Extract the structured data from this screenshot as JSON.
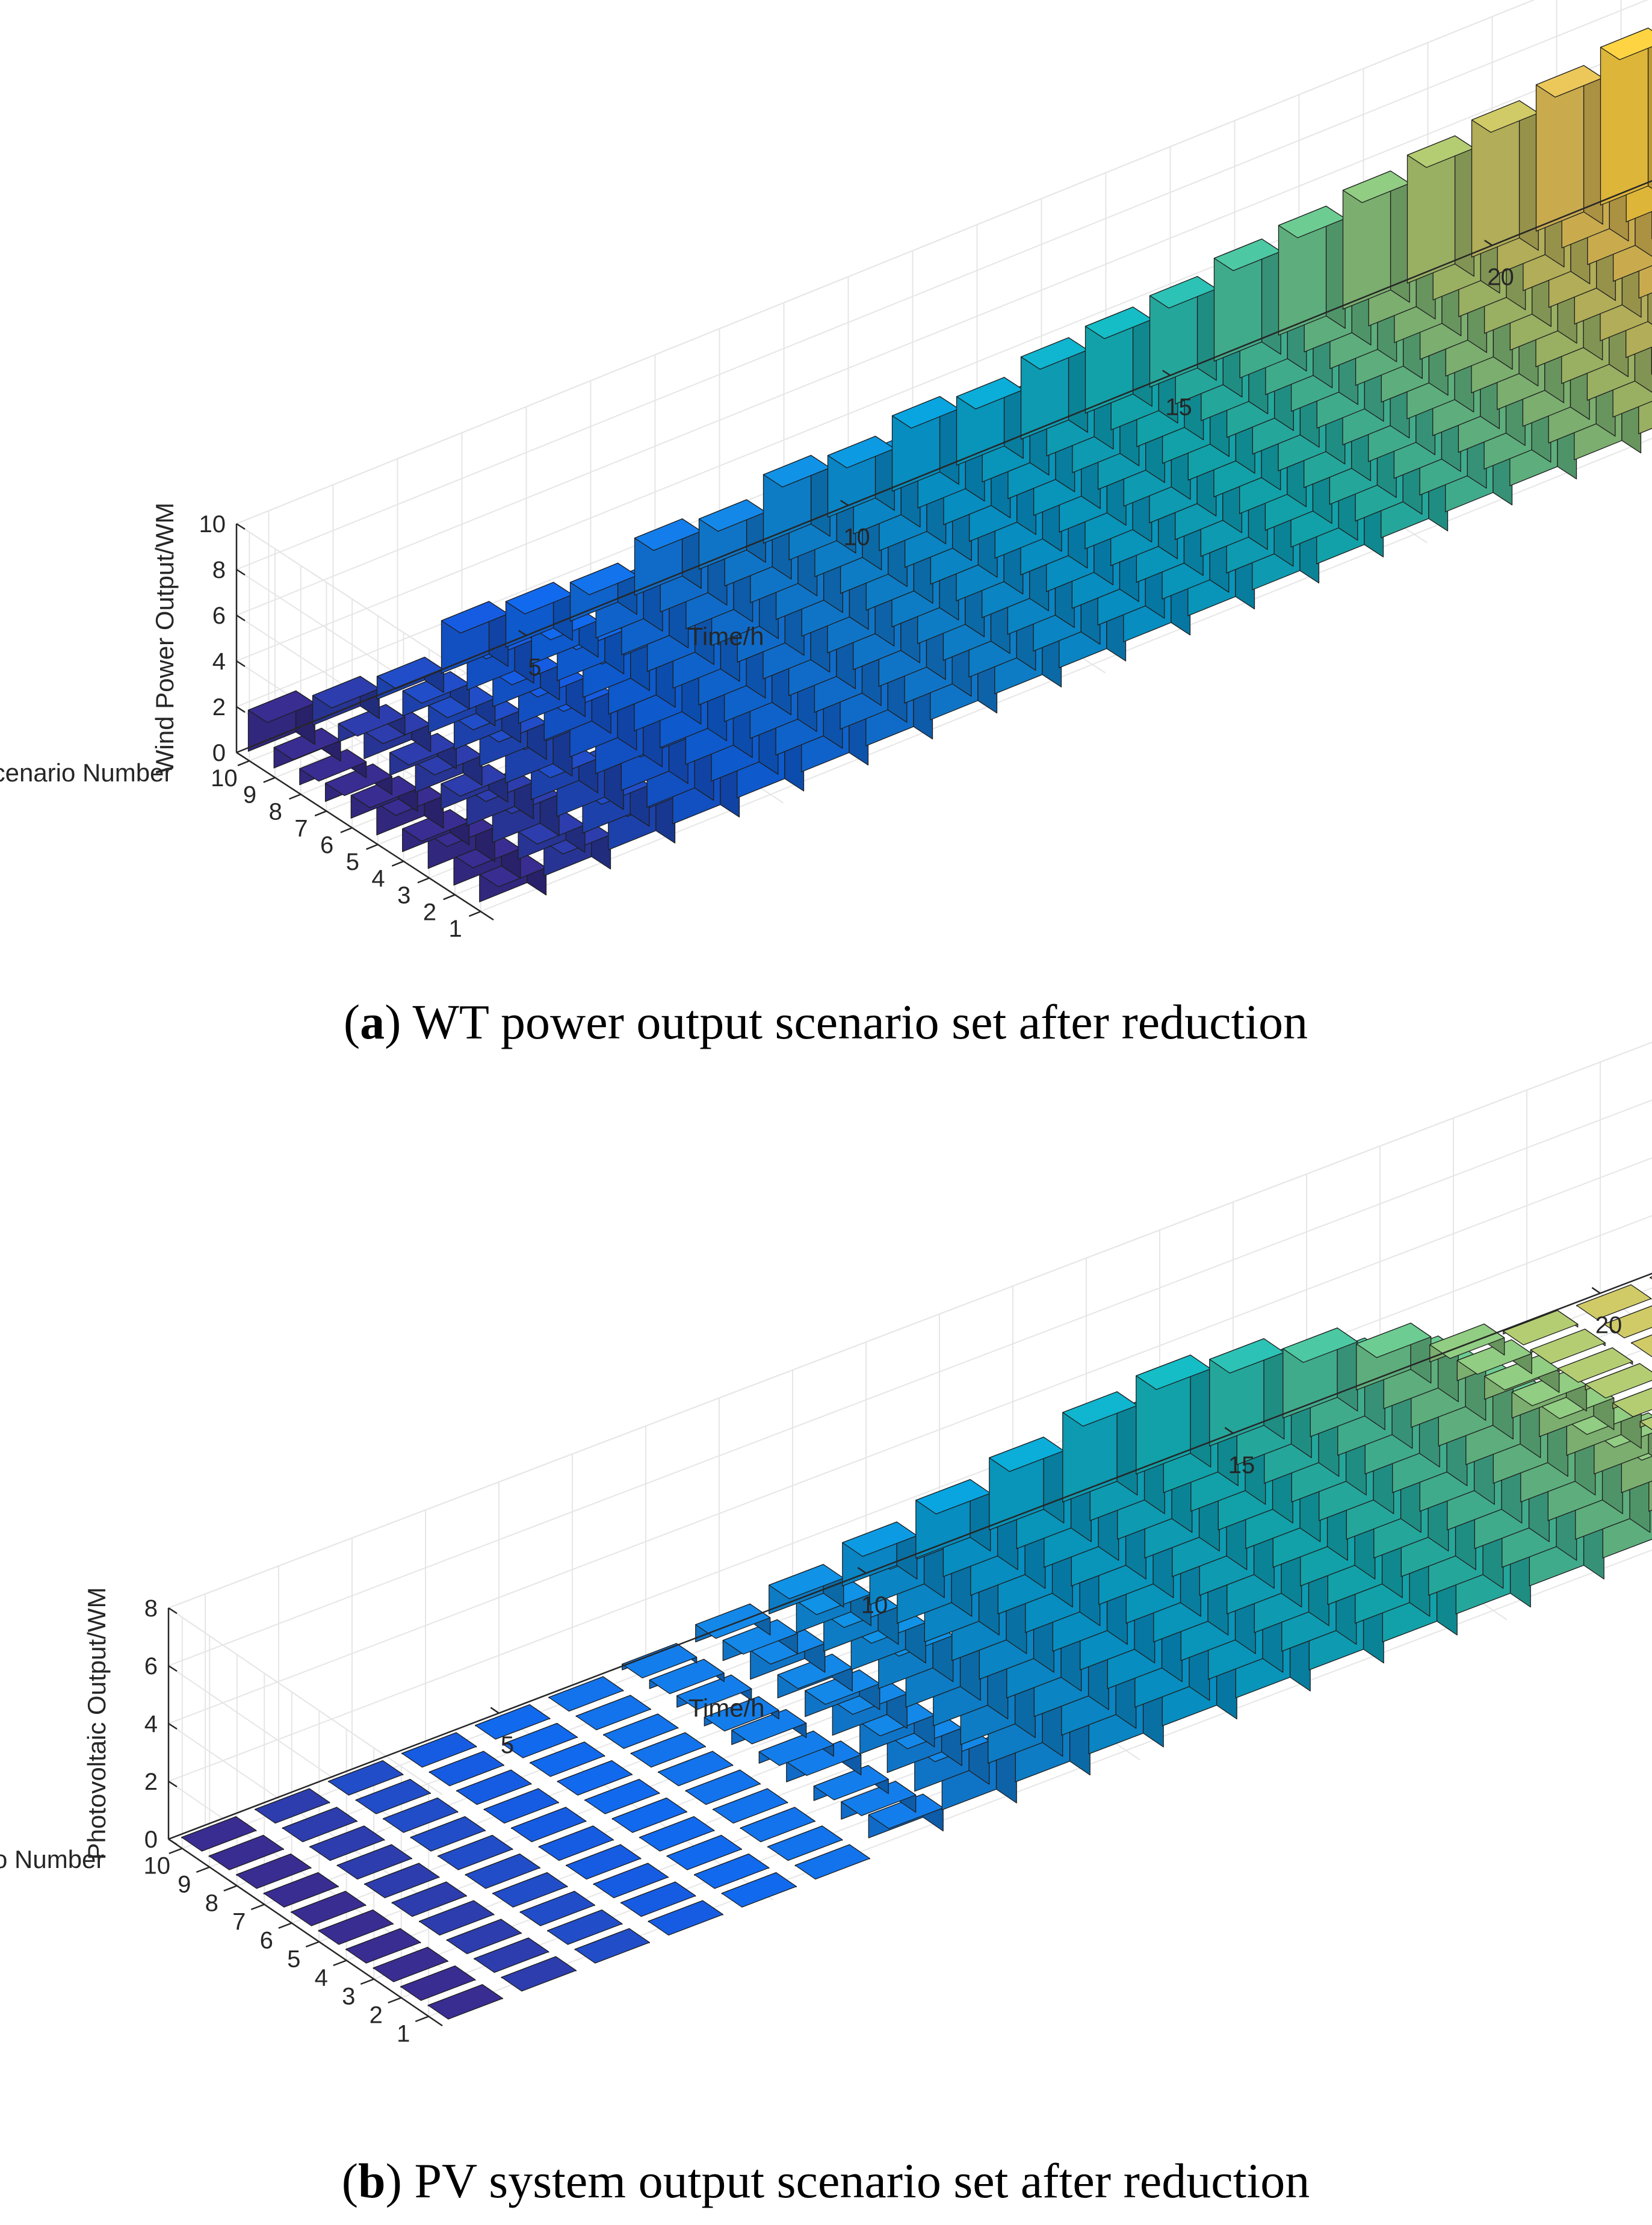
{
  "chart_data": [
    {
      "id": "a",
      "type": "bar3d",
      "caption": {
        "letter": "a",
        "text": "WT power output scenario set after reduction"
      },
      "xlabel": "Time/h",
      "ylabel": "Scenario Number",
      "zlabel": "Wind Power Output/WM",
      "xlim": [
        0.5,
        24.5
      ],
      "ylim": [
        0.5,
        10.5
      ],
      "zlim": [
        0,
        10
      ],
      "xticks": [
        5,
        10,
        15,
        20
      ],
      "yticks": [
        1,
        2,
        3,
        4,
        5,
        6,
        7,
        8,
        9,
        10
      ],
      "zticks": [
        0,
        2,
        4,
        6,
        8,
        10
      ],
      "x": [
        1,
        2,
        3,
        4,
        5,
        6,
        7,
        8,
        9,
        10,
        11,
        12,
        13,
        14,
        15,
        16,
        17,
        18,
        19,
        20,
        21,
        22,
        23,
        24
      ],
      "series": [
        {
          "name": "Scenario 1",
          "values": [
            1.2,
            1.5,
            2.0,
            2.8,
            4.0,
            5.2,
            4.8,
            5.3,
            6.0,
            7.2,
            6.5,
            6.8,
            7.0,
            7.5,
            8.0,
            8.5,
            9.0,
            9.5,
            13.2,
            11.5,
            10.2,
            9.6,
            8.7,
            8.3
          ]
        },
        {
          "name": "Scenario 2",
          "values": [
            1.3,
            1.2,
            1.8,
            2.5,
            3.0,
            3.5,
            4.2,
            4.6,
            5.2,
            4.8,
            5.5,
            6.0,
            6.6,
            7.8,
            8.3,
            8.8,
            9.2,
            9.7,
            10.5,
            10.8,
            9.5,
            9.0,
            8.4,
            8.0
          ]
        },
        {
          "name": "Scenario 3",
          "values": [
            1.5,
            1.8,
            2.2,
            2.0,
            2.8,
            3.4,
            3.8,
            4.0,
            4.5,
            5.0,
            5.2,
            5.8,
            6.3,
            6.8,
            7.2,
            7.8,
            8.2,
            8.7,
            9.0,
            9.3,
            9.6,
            9.0,
            8.2,
            7.6
          ]
        },
        {
          "name": "Scenario 4",
          "values": [
            1.0,
            1.6,
            1.5,
            2.4,
            3.2,
            2.9,
            3.3,
            3.9,
            4.2,
            4.4,
            4.9,
            5.3,
            5.7,
            6.2,
            6.6,
            7.1,
            7.6,
            8.0,
            8.3,
            8.7,
            8.9,
            8.6,
            7.9,
            7.4
          ]
        },
        {
          "name": "Scenario 5",
          "values": [
            1.4,
            1.1,
            2.0,
            2.2,
            2.6,
            3.1,
            3.0,
            3.6,
            3.8,
            4.3,
            4.6,
            4.8,
            5.4,
            5.6,
            6.1,
            6.4,
            7.0,
            7.4,
            7.8,
            8.1,
            8.5,
            8.2,
            7.6,
            7.3
          ]
        },
        {
          "name": "Scenario 6",
          "values": [
            1.0,
            1.3,
            1.6,
            1.8,
            2.4,
            2.6,
            3.2,
            3.1,
            3.5,
            3.9,
            4.1,
            4.4,
            4.7,
            5.2,
            5.5,
            6.0,
            6.5,
            6.9,
            7.4,
            7.7,
            8.0,
            7.9,
            7.4,
            7.1
          ]
        },
        {
          "name": "Scenario 7",
          "values": [
            0.8,
            1.0,
            1.4,
            1.7,
            2.0,
            2.5,
            2.8,
            3.3,
            3.0,
            3.7,
            3.5,
            4.2,
            4.5,
            4.7,
            5.0,
            5.4,
            5.9,
            6.3,
            6.8,
            7.2,
            7.6,
            7.8,
            7.2,
            6.9
          ]
        },
        {
          "name": "Scenario 8",
          "values": [
            0.7,
            1.2,
            1.2,
            1.5,
            1.9,
            2.2,
            2.4,
            2.9,
            3.3,
            3.2,
            3.6,
            3.8,
            4.0,
            4.4,
            4.6,
            5.1,
            5.4,
            5.8,
            6.2,
            6.6,
            7.0,
            7.5,
            7.0,
            6.6
          ]
        },
        {
          "name": "Scenario 9",
          "values": [
            0.9,
            0.8,
            1.1,
            1.9,
            1.6,
            2.3,
            2.1,
            2.6,
            2.9,
            3.4,
            3.1,
            3.5,
            3.9,
            4.1,
            4.3,
            4.8,
            5.2,
            5.5,
            5.9,
            6.3,
            6.7,
            7.2,
            6.8,
            6.4
          ]
        },
        {
          "name": "Scenario 10",
          "values": [
            1.8,
            1.3,
            1.0,
            2.3,
            2.0,
            1.7,
            2.5,
            2.2,
            3.0,
            2.7,
            3.3,
            3.0,
            3.6,
            3.8,
            4.0,
            4.5,
            4.8,
            5.2,
            5.6,
            6.0,
            6.4,
            6.9,
            7.3,
            7.8
          ]
        }
      ]
    },
    {
      "id": "b",
      "type": "bar3d",
      "caption": {
        "letter": "b",
        "text": "PV system output scenario set after reduction"
      },
      "xlabel": "Time/h",
      "ylabel": "Scenario Number",
      "zlabel": "Photovoltaic Output/WM",
      "xlim": [
        0.5,
        24.5
      ],
      "ylim": [
        0.5,
        10.5
      ],
      "zlim": [
        0,
        8
      ],
      "xticks": [
        5,
        10,
        15,
        20
      ],
      "yticks": [
        1,
        2,
        3,
        4,
        5,
        6,
        7,
        8,
        9,
        10
      ],
      "zticks": [
        0,
        2,
        4,
        6,
        8
      ],
      "x": [
        1,
        2,
        3,
        4,
        5,
        6,
        7,
        8,
        9,
        10,
        11,
        12,
        13,
        14,
        15,
        16,
        17,
        18,
        19,
        20,
        21,
        22,
        23,
        24
      ],
      "series": [
        {
          "name": "Scenario 1",
          "values": [
            0,
            0,
            0,
            0,
            0,
            0,
            0.8,
            1.9,
            2.6,
            3.6,
            4.4,
            5.9,
            7.0,
            7.2,
            6.4,
            5.3,
            4.2,
            2.1,
            0.5,
            0,
            0,
            0,
            0,
            0
          ]
        },
        {
          "name": "Scenario 2",
          "values": [
            0,
            0,
            0,
            0,
            0,
            0,
            0.6,
            1.5,
            2.9,
            3.1,
            4.1,
            5.4,
            6.6,
            6.7,
            6.1,
            4.9,
            3.7,
            1.8,
            0.4,
            0,
            0,
            0,
            0,
            0
          ]
        },
        {
          "name": "Scenario 3",
          "values": [
            0,
            0,
            0,
            0,
            0,
            0,
            0.5,
            1.3,
            2.2,
            3.4,
            3.6,
            5.0,
            5.9,
            6.2,
            5.7,
            4.6,
            3.3,
            1.6,
            0.3,
            0,
            0,
            0,
            0,
            0
          ]
        },
        {
          "name": "Scenario 4",
          "values": [
            0,
            0,
            0,
            0,
            0,
            0,
            0.7,
            1.1,
            2.0,
            2.8,
            3.9,
            4.4,
            5.5,
            5.8,
            5.3,
            4.2,
            3.0,
            1.4,
            0.3,
            0,
            0,
            0,
            0,
            0
          ]
        },
        {
          "name": "Scenario 5",
          "values": [
            0,
            0,
            0,
            0,
            0,
            0,
            0.4,
            1.2,
            1.8,
            2.5,
            3.2,
            4.1,
            5.1,
            5.3,
            4.8,
            3.9,
            2.8,
            1.2,
            0.2,
            0,
            0,
            0,
            0,
            0
          ]
        },
        {
          "name": "Scenario 6",
          "values": [
            0,
            0,
            0,
            0,
            0,
            0,
            0.5,
            0.9,
            1.6,
            2.3,
            2.9,
            3.8,
            4.6,
            4.9,
            4.4,
            3.6,
            2.5,
            1.1,
            0.2,
            0,
            0,
            0,
            0,
            0
          ]
        },
        {
          "name": "Scenario 7",
          "values": [
            0,
            0,
            0,
            0,
            0,
            0,
            0.3,
            0.8,
            1.4,
            2.1,
            2.7,
            3.4,
            4.2,
            4.5,
            4.1,
            3.3,
            2.3,
            0.9,
            0.2,
            0,
            0,
            0,
            0,
            0
          ]
        },
        {
          "name": "Scenario 8",
          "values": [
            0,
            0,
            0,
            0,
            0,
            0,
            0.4,
            1.0,
            1.3,
            1.9,
            2.4,
            3.1,
            3.8,
            4.1,
            3.7,
            3.0,
            2.0,
            0.8,
            0.1,
            0,
            0,
            0,
            0,
            0
          ]
        },
        {
          "name": "Scenario 9",
          "values": [
            0,
            0,
            0,
            0,
            0,
            0,
            0.3,
            0.7,
            1.1,
            1.7,
            2.2,
            2.8,
            3.5,
            3.7,
            3.4,
            2.7,
            1.8,
            0.7,
            0.1,
            0,
            0,
            0,
            0,
            0
          ]
        },
        {
          "name": "Scenario 10",
          "values": [
            0,
            0,
            0,
            0,
            0,
            0,
            0.2,
            0.6,
            1.0,
            1.5,
            2.0,
            2.5,
            3.1,
            3.4,
            3.0,
            2.4,
            1.6,
            0.6,
            0.1,
            0,
            0,
            0,
            0,
            0
          ]
        }
      ]
    }
  ]
}
